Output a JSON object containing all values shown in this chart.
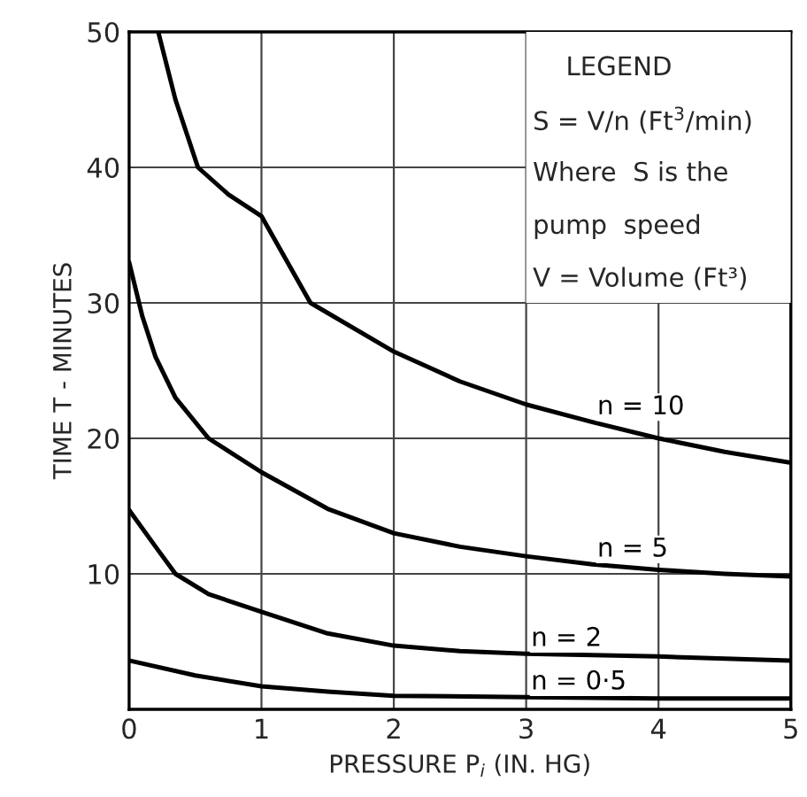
{
  "chart_data": {
    "type": "line",
    "xlabel": "PRESSURE P$_{i}$ (IN. HG)",
    "ylabel": "TIME T - MINUTES",
    "xlim": [
      0,
      5
    ],
    "ylim": [
      0,
      50
    ],
    "xticks": [
      0,
      1,
      2,
      3,
      4,
      5
    ],
    "yticks": [
      {
        "value": 0,
        "label": null
      },
      10,
      20,
      30,
      40,
      50
    ],
    "grid": true,
    "marker": "none",
    "line_style": "solid",
    "series": [
      {
        "name": "n = 10",
        "color": "#000000",
        "x": [
          0.22,
          0.35,
          0.52,
          0.75,
          1,
          1.37,
          2,
          2.5,
          3,
          3.5,
          4,
          4.5,
          5
        ],
        "values": [
          50,
          45,
          40,
          38,
          36.4,
          30,
          26.4,
          24.2,
          22.5,
          21.2,
          20,
          19,
          18.2
        ]
      },
      {
        "name": "n = 5",
        "color": "#000000",
        "x": [
          0,
          0.1,
          0.2,
          0.35,
          0.6,
          1,
          1.5,
          2,
          2.5,
          3,
          3.5,
          4,
          4.5,
          5
        ],
        "values": [
          33,
          29,
          26,
          23,
          20,
          17.5,
          14.8,
          13,
          12,
          11.3,
          10.7,
          10.3,
          10,
          9.8
        ]
      },
      {
        "name": "n = 2",
        "color": "#000000",
        "x": [
          0,
          0.2,
          0.35,
          0.6,
          1,
          1.5,
          2,
          2.5,
          3,
          4,
          5
        ],
        "values": [
          14.7,
          12,
          10,
          8.5,
          7.2,
          5.6,
          4.7,
          4.3,
          4.1,
          3.9,
          3.6
        ]
      },
      {
        "name": "n = 0·5",
        "color": "#000000",
        "x": [
          0,
          0.5,
          1,
          1.5,
          2,
          3,
          4,
          5
        ],
        "values": [
          3.6,
          2.5,
          1.7,
          1.3,
          1.0,
          0.9,
          0.8,
          0.8
        ]
      }
    ],
    "annotations": [
      "LEGEND",
      "S = V/n (Ft$^{3}$/min)",
      "Where  S is the",
      "pump  speed",
      "V = Volume (Ft³)"
    ]
  }
}
